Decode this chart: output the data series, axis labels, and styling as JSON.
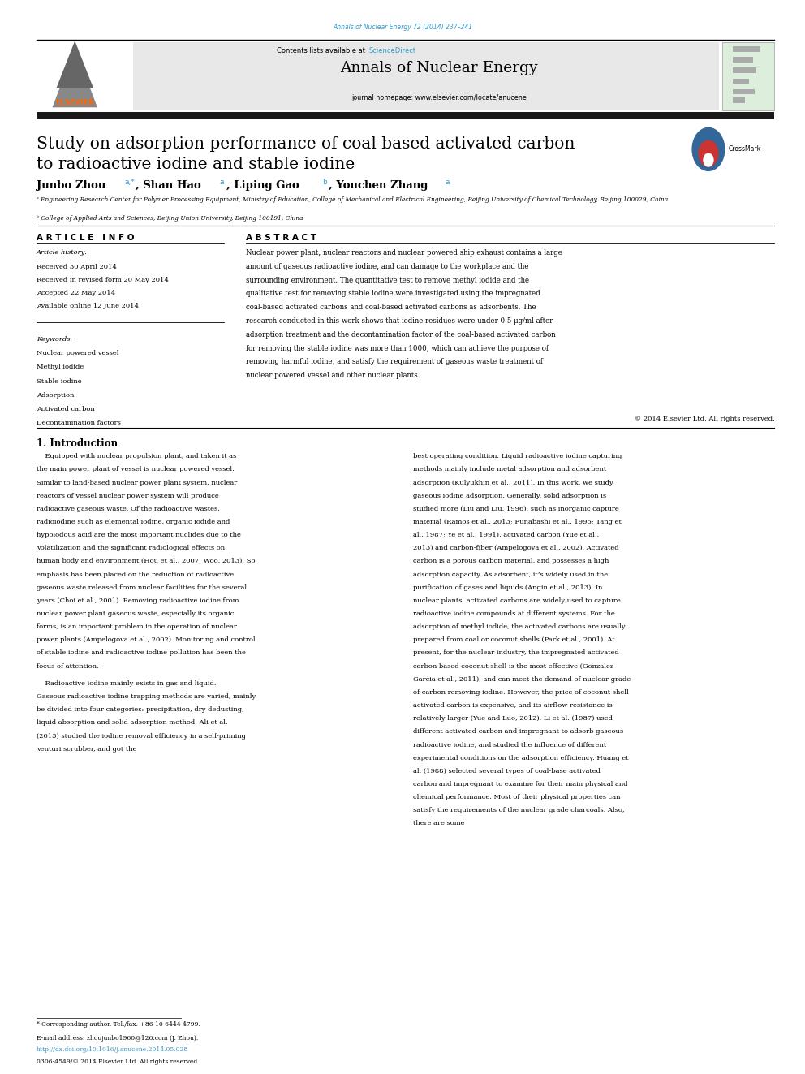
{
  "page_width": 9.92,
  "page_height": 13.23,
  "bg_color": "#ffffff",
  "journal_ref": "Annals of Nuclear Energy 72 (2014) 237–241",
  "journal_ref_color": "#3399cc",
  "contents_line": "Contents lists available at ",
  "sciencedirect": "ScienceDirect",
  "sciencedirect_color": "#3399cc",
  "journal_name": "Annals of Nuclear Energy",
  "journal_homepage": "journal homepage: www.elsevier.com/locate/anucene",
  "header_bg": "#e8e8e8",
  "black_bar_color": "#1a1a1a",
  "title_line1": "Study on adsorption performance of coal based activated carbon",
  "title_line2": "to radioactive iodine and stable iodine",
  "title_fontsize": 14.5,
  "affil_a": "ᵃ Engineering Research Center for Polymer Processing Equipment, Ministry of Education, College of Mechanical and Electrical Engineering, Beijing University of Chemical Technology, Beijing 100029, China",
  "affil_b": "ᵇ College of Applied Arts and Sciences, Beijing Union University, Beijing 100191, China",
  "article_info_header": "A R T I C L E   I N F O",
  "abstract_header": "A B S T R A C T",
  "article_history_label": "Article history:",
  "received": "Received 30 April 2014",
  "received_revised": "Received in revised form 20 May 2014",
  "accepted": "Accepted 22 May 2014",
  "available": "Available online 12 June 2014",
  "keywords_label": "Keywords:",
  "keyword1": "Nuclear powered vessel",
  "keyword2": "Methyl iodide",
  "keyword3": "Stable iodine",
  "keyword4": "Adsorption",
  "keyword5": "Activated carbon",
  "keyword6": "Decontamination factors",
  "abstract_text": "Nuclear power plant, nuclear reactors and nuclear powered ship exhaust contains a large amount of gaseous radioactive iodine, and can damage to the workplace and the surrounding environment. The quantitative test to remove methyl iodide and the qualitative test for removing stable iodine were investigated using the impregnated coal-based activated carbons and coal-based activated carbons as adsorbents. The research conducted in this work shows that iodine residues were under 0.5 μg/ml after adsorption treatment and the decontamination factor of the coal-based activated carbon for removing the stable iodine was more than 1000, which can achieve the purpose of removing harmful iodine, and satisfy the requirement of gaseous waste treatment of nuclear powered vessel and other nuclear plants.",
  "copyright": "© 2014 Elsevier Ltd. All rights reserved.",
  "intro_header": "1. Introduction",
  "intro_col1_p1": "    Equipped with nuclear propulsion plant, and taken it as the main power plant of vessel is nuclear powered vessel. Similar to land-based nuclear power plant system, nuclear reactors of vessel nuclear power system will produce radioactive gaseous waste. Of the radioactive wastes, radioiodine such as elemental iodine, organic iodide and hypoiodous acid are the most important nuclides due to the volatilization and the significant radiological effects on human body and environment (Hou et al., 2007; Woo, 2013). So emphasis has been placed on the reduction of radioactive gaseous waste released from nuclear facilities for the several years (Choi et al., 2001). Removing radioactive iodine from nuclear power plant gaseous waste, especially its organic forms, is an important problem in the operation of nuclear power plants (Ampelogova et al., 2002). Monitoring and control of stable iodine and radioactive iodine pollution has been the focus of attention.",
  "intro_col1_p2": "    Radioactive iodine mainly exists in gas and liquid. Gaseous radioactive iodine trapping methods are varied, mainly be divided into four categories: precipitation, dry dedusting, liquid absorption and solid adsorption method. Ali et al. (2013) studied the iodine removal efficiency in a self-priming venturi scrubber, and got the",
  "intro_col2": "best operating condition. Liquid radioactive iodine capturing methods mainly include metal adsorption and adsorbent adsorption (Kulyukhin et al., 2011). In this work, we study gaseous iodine adsorption. Generally, solid adsorption is studied more (Liu and Liu, 1996), such as inorganic capture material (Ramos et al., 2013; Funabashi et al., 1995; Tang et al., 1987; Ye et al., 1991), activated carbon (Yue et al., 2013) and carbon-fiber (Ampelogova et al., 2002). Activated carbon is a porous carbon material, and possesses a high adsorption capacity. As adsorbent, it’s widely used in the purification of gases and liquids (Angin et al., 2013). In nuclear plants, activated carbons are widely used to capture radioactive iodine compounds at different systems. For the adsorption of methyl iodide, the activated carbons are usually prepared from coal or coconut shells (Park et al., 2001). At present, for the nuclear industry, the impregnated activated carbon based coconut shell is the most effective (Gonzalez-Garcia et al., 2011), and can meet the demand of nuclear grade of carbon removing iodine. However, the price of coconut shell activated carbon is expensive, and its airflow resistance is relatively larger (Yue and Luo, 2012). Li et al. (1987) used different activated carbon and impregnant to adsorb gaseous radioactive iodine, and studied the influence of different experimental conditions on the adsorption efficiency. Huang et al. (1988) selected several types of coal-base activated carbon and impregnant to examine for their main physical and chemical performance. Most of their physical properties can satisfy the requirements of the nuclear grade charcoals. Also, there are some",
  "footnote1": "* Corresponding author. Tel./fax: +86 10 6444 4799.",
  "footnote2": "E-mail address: zhoujunbo1960@126.com (J. Zhou).",
  "doi_line": "http://dx.doi.org/10.1016/j.anucene.2014.05.028",
  "issn_line": "0306-4549/© 2014 Elsevier Ltd. All rights reserved.",
  "link_color": "#3399cc",
  "elsevier_orange": "#FF6600",
  "elsevier_text_color": "#FF6600"
}
